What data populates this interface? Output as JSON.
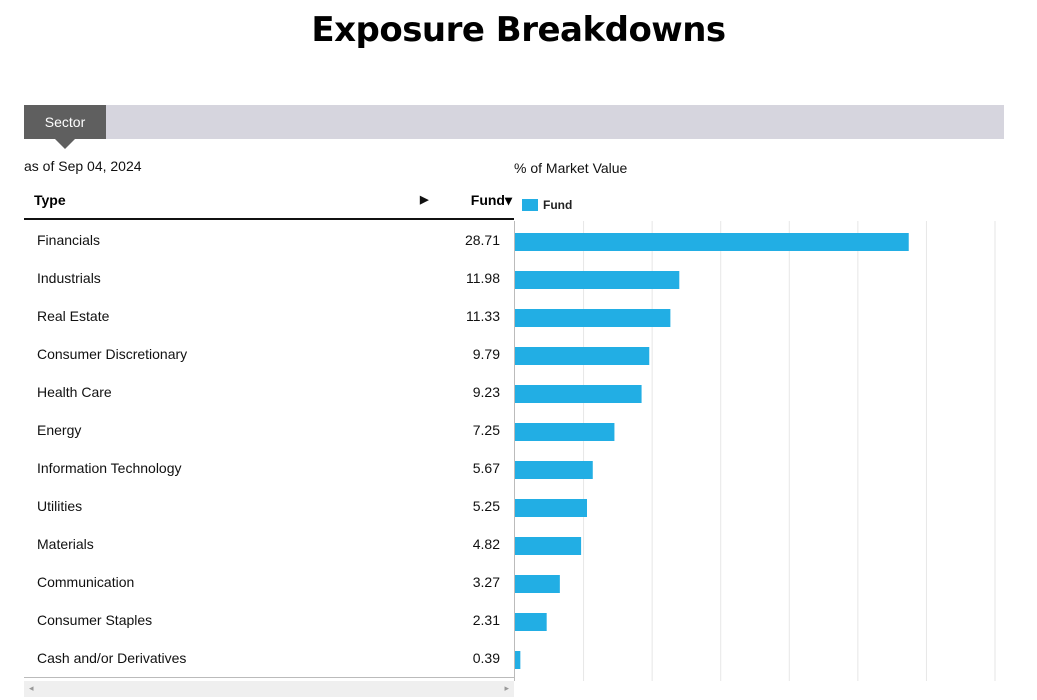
{
  "page": {
    "title": "Exposure Breakdowns"
  },
  "tabs": [
    {
      "label": "Sector",
      "active": true
    }
  ],
  "as_of": "as of Sep 04, 2024",
  "chart_caption": "% of Market Value",
  "table": {
    "headers": {
      "type": "Type",
      "fund": "Fund▾",
      "expand_arrow": "▶"
    },
    "rows": [
      {
        "label": "Financials",
        "value": "28.71"
      },
      {
        "label": "Industrials",
        "value": "11.98"
      },
      {
        "label": "Real Estate",
        "value": "11.33"
      },
      {
        "label": "Consumer Discretionary",
        "value": "9.79"
      },
      {
        "label": "Health Care",
        "value": "9.23"
      },
      {
        "label": "Energy",
        "value": "7.25"
      },
      {
        "label": "Information Technology",
        "value": "5.67"
      },
      {
        "label": "Utilities",
        "value": "5.25"
      },
      {
        "label": "Materials",
        "value": "4.82"
      },
      {
        "label": "Communication",
        "value": "3.27"
      },
      {
        "label": "Consumer Staples",
        "value": "2.31"
      },
      {
        "label": "Cash and/or Derivatives",
        "value": "0.39"
      }
    ]
  },
  "scrollbar": {
    "left_icon": "◂",
    "right_icon": "▸"
  },
  "chart_data": {
    "type": "bar",
    "orientation": "horizontal",
    "categories": [
      "Financials",
      "Industrials",
      "Real Estate",
      "Consumer Discretionary",
      "Health Care",
      "Energy",
      "Information Technology",
      "Utilities",
      "Materials",
      "Communication",
      "Consumer Staples",
      "Cash and/or Derivatives"
    ],
    "series": [
      {
        "name": "Fund",
        "values": [
          28.71,
          11.98,
          11.33,
          9.79,
          9.23,
          7.25,
          5.67,
          5.25,
          4.82,
          3.27,
          2.31,
          0.39
        ]
      }
    ],
    "xlim": [
      0,
      35
    ],
    "grid": true,
    "legend": "top-left",
    "color": "#22aee4"
  }
}
